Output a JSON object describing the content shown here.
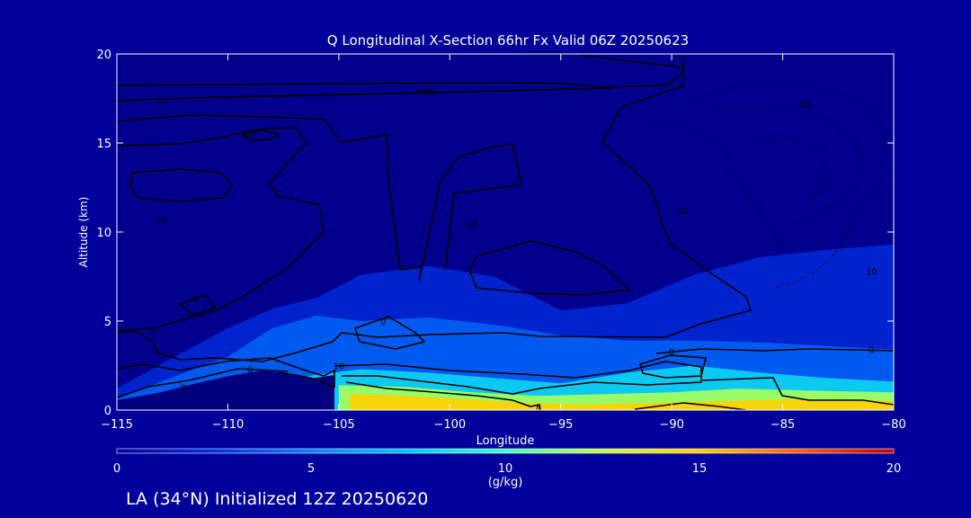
{
  "chart_data": {
    "type": "heatmap",
    "title": "Q Longitudinal X-Section 66hr  Fx Valid 06Z 20250623",
    "xlabel": "Longitude",
    "ylabel": "Altitude (km)",
    "xlim": [
      -115,
      -80
    ],
    "ylim": [
      0,
      20
    ],
    "x_ticks": [
      -115,
      -110,
      -105,
      -100,
      -95,
      -90,
      -85,
      -80
    ],
    "x_tick_labels": [
      "−115",
      "−110",
      "−105",
      "−100",
      "−95",
      "−90",
      "−85",
      "−80"
    ],
    "y_ticks": [
      0,
      5,
      10,
      15,
      20
    ],
    "y_tick_labels": [
      "0",
      "5",
      "10",
      "15",
      "20"
    ],
    "grid": false,
    "colorbar": {
      "label": "(g/kg)",
      "min": 0,
      "max": 20,
      "ticks": [
        0,
        5,
        10,
        15,
        20
      ],
      "tick_labels": [
        "0",
        "5",
        "10",
        "15",
        "20"
      ],
      "colors": [
        "#00009a",
        "#0030e0",
        "#0080ff",
        "#00c8ff",
        "#40ffc0",
        "#c0ff40",
        "#ffd000",
        "#ff6000",
        "#c00000"
      ]
    },
    "humidity_bands": [
      {
        "level_gkg": 2,
        "lons": [
          -115,
          -113,
          -110,
          -108,
          -106,
          -104,
          -101,
          -98,
          -95,
          -92,
          -89,
          -86,
          -83,
          -80
        ],
        "top_km": [
          1.2,
          2.6,
          4.6,
          5.7,
          6.3,
          7.6,
          8.1,
          7.5,
          5.6,
          6.0,
          7.6,
          8.6,
          9.0,
          9.3
        ]
      },
      {
        "level_gkg": 4,
        "lons": [
          -115,
          -113,
          -110,
          -108,
          -106,
          -104,
          -101,
          -98,
          -95,
          -92,
          -89,
          -86,
          -83,
          -80
        ],
        "top_km": [
          0.6,
          1.6,
          3.0,
          4.6,
          5.3,
          5.0,
          5.2,
          4.8,
          4.2,
          3.9,
          3.9,
          3.8,
          3.6,
          3.4
        ]
      },
      {
        "level_gkg": 8,
        "lons": [
          -114,
          -110,
          -106.5,
          -104,
          -101,
          -98,
          -95,
          -92,
          -89,
          -86,
          -83,
          -80
        ],
        "top_km": [
          0.3,
          1.0,
          1.9,
          2.3,
          2.1,
          1.8,
          1.5,
          2.1,
          2.5,
          2.1,
          1.8,
          1.6
        ]
      },
      {
        "level_gkg": 12,
        "lons": [
          -105,
          -102,
          -99,
          -96,
          -93,
          -90,
          -87,
          -84,
          -80
        ],
        "top_km": [
          1.4,
          1.3,
          1.0,
          0.8,
          0.9,
          1.0,
          1.2,
          1.1,
          1.0
        ]
      },
      {
        "level_gkg": 15,
        "lons": [
          -104.5,
          -102,
          -99,
          -96.5,
          -94,
          -91,
          -88,
          -85,
          -82,
          -80
        ],
        "top_km": [
          0.9,
          0.8,
          0.6,
          0.4,
          0.3,
          0.4,
          0.5,
          0.6,
          0.6,
          0.5
        ]
      }
    ],
    "contour_labels": [
      {
        "text": "10",
        "lon": -113.0,
        "lat_km": 17.4
      },
      {
        "text": "20",
        "lon": -109.0,
        "lat_km": 15.5
      },
      {
        "text": "20",
        "lon": -113.0,
        "lat_km": 10.7
      },
      {
        "text": "10",
        "lon": -99.0,
        "lat_km": 10.5
      },
      {
        "text": "10",
        "lon": -84.0,
        "lat_km": 17.2
      },
      {
        "text": "10",
        "lon": -89.5,
        "lat_km": 11.2
      },
      {
        "text": "10",
        "lon": -81.0,
        "lat_km": 7.8
      },
      {
        "text": "0",
        "lon": -111.5,
        "lat_km": 6.3
      },
      {
        "text": "0",
        "lon": -113.5,
        "lat_km": 4.5
      },
      {
        "text": "0",
        "lon": -103.0,
        "lat_km": 5.0
      },
      {
        "text": "0",
        "lon": -109.0,
        "lat_km": 2.3
      },
      {
        "text": "0",
        "lon": -112.0,
        "lat_km": 1.3
      },
      {
        "text": "10",
        "lon": -105.0,
        "lat_km": 2.5
      },
      {
        "text": "0",
        "lon": -90.0,
        "lat_km": 3.3
      },
      {
        "text": "0",
        "lon": -81.0,
        "lat_km": 3.4
      },
      {
        "text": "0",
        "lon": -96.0,
        "lat_km": 0.1
      }
    ],
    "subtitle": "LA (34°N) Initialized 12Z 20250620"
  }
}
